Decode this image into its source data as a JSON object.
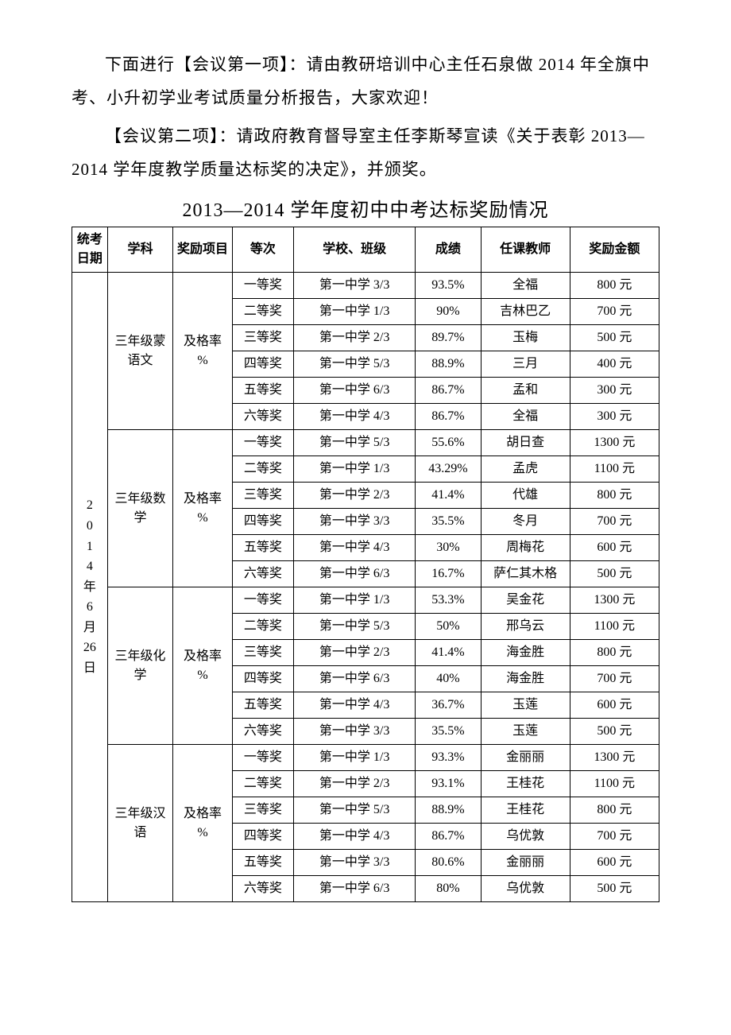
{
  "paragraphs": {
    "p1": "下面进行【会议第一项】：请由教研培训中心主任石泉做 2014 年全旗中考、小升初学业考试质量分析报告，大家欢迎！",
    "p2": "【会议第二项】：请政府教育督导室主任李斯琴宣读《关于表彰 2013—2014 学年度教学质量达标奖的决定》，并颁奖。"
  },
  "table_title": "2013—2014 学年度初中中考达标奖励情况",
  "headers": {
    "date": "统考日期",
    "subject": "学科",
    "item": "奖励项目",
    "rank": "等次",
    "school_class": "学校、班级",
    "score": "成绩",
    "teacher": "任课教师",
    "amount": "奖励金额"
  },
  "date_cell": "2\n0\n1\n4\n年\n6\n月\n26\n日",
  "groups": [
    {
      "subject": "三年级蒙语文",
      "item": "及格率%",
      "rows": [
        {
          "rank": "一等奖",
          "class": "第一中学 3/3",
          "score": "93.5%",
          "teacher": "全福",
          "amount": "800 元"
        },
        {
          "rank": "二等奖",
          "class": "第一中学 1/3",
          "score": "90%",
          "teacher": "吉林巴乙",
          "amount": "700 元"
        },
        {
          "rank": "三等奖",
          "class": "第一中学 2/3",
          "score": "89.7%",
          "teacher": "玉梅",
          "amount": "500 元"
        },
        {
          "rank": "四等奖",
          "class": "第一中学 5/3",
          "score": "88.9%",
          "teacher": "三月",
          "amount": "400 元"
        },
        {
          "rank": "五等奖",
          "class": "第一中学 6/3",
          "score": "86.7%",
          "teacher": "孟和",
          "amount": "300 元"
        },
        {
          "rank": "六等奖",
          "class": "第一中学 4/3",
          "score": "86.7%",
          "teacher": "全福",
          "amount": "300 元"
        }
      ]
    },
    {
      "subject": "三年级数学",
      "item": "及格率%",
      "rows": [
        {
          "rank": "一等奖",
          "class": "第一中学 5/3",
          "score": "55.6%",
          "teacher": "胡日查",
          "amount": "1300 元"
        },
        {
          "rank": "二等奖",
          "class": "第一中学 1/3",
          "score": "43.29%",
          "teacher": "孟虎",
          "amount": "1100 元"
        },
        {
          "rank": "三等奖",
          "class": "第一中学 2/3",
          "score": "41.4%",
          "teacher": "代雄",
          "amount": "800 元"
        },
        {
          "rank": "四等奖",
          "class": "第一中学 3/3",
          "score": "35.5%",
          "teacher": "冬月",
          "amount": "700 元"
        },
        {
          "rank": "五等奖",
          "class": "第一中学 4/3",
          "score": "30%",
          "teacher": "周梅花",
          "amount": "600 元"
        },
        {
          "rank": "六等奖",
          "class": "第一中学 6/3",
          "score": "16.7%",
          "teacher": "萨仁其木格",
          "amount": "500 元"
        }
      ]
    },
    {
      "subject": "三年级化学",
      "item": "及格率%",
      "rows": [
        {
          "rank": "一等奖",
          "class": "第一中学 1/3",
          "score": "53.3%",
          "teacher": "吴金花",
          "amount": "1300 元"
        },
        {
          "rank": "二等奖",
          "class": "第一中学 5/3",
          "score": "50%",
          "teacher": "邢乌云",
          "amount": "1100 元"
        },
        {
          "rank": "三等奖",
          "class": "第一中学 2/3",
          "score": "41.4%",
          "teacher": "海金胜",
          "amount": "800 元"
        },
        {
          "rank": "四等奖",
          "class": "第一中学 6/3",
          "score": "40%",
          "teacher": "海金胜",
          "amount": "700 元"
        },
        {
          "rank": "五等奖",
          "class": "第一中学 4/3",
          "score": "36.7%",
          "teacher": "玉莲",
          "amount": "600 元"
        },
        {
          "rank": "六等奖",
          "class": "第一中学 3/3",
          "score": "35.5%",
          "teacher": "玉莲",
          "amount": "500 元"
        }
      ]
    },
    {
      "subject": "三年级汉语",
      "item": "及格率%",
      "rows": [
        {
          "rank": "一等奖",
          "class": "第一中学 1/3",
          "score": "93.3%",
          "teacher": "金丽丽",
          "amount": "1300 元"
        },
        {
          "rank": "二等奖",
          "class": "第一中学 2/3",
          "score": "93.1%",
          "teacher": "王桂花",
          "amount": "1100 元"
        },
        {
          "rank": "三等奖",
          "class": "第一中学 5/3",
          "score": "88.9%",
          "teacher": "王桂花",
          "amount": "800 元"
        },
        {
          "rank": "四等奖",
          "class": "第一中学 4/3",
          "score": "86.7%",
          "teacher": "乌优敦",
          "amount": "700 元"
        },
        {
          "rank": "五等奖",
          "class": "第一中学 3/3",
          "score": "80.6%",
          "teacher": "金丽丽",
          "amount": "600 元"
        },
        {
          "rank": "六等奖",
          "class": "第一中学 6/3",
          "score": "80%",
          "teacher": "乌优敦",
          "amount": "500 元"
        }
      ]
    }
  ]
}
